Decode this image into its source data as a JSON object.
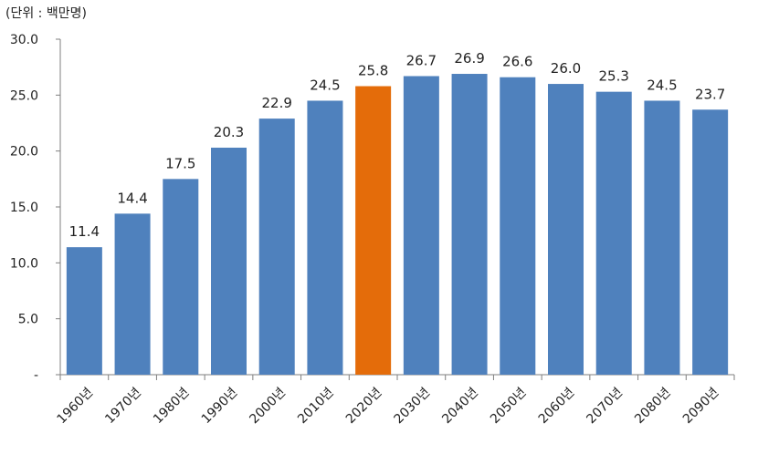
{
  "unit_label": "(단위 : 백만명)",
  "chart_data": {
    "type": "bar",
    "categories": [
      "1960년",
      "1970년",
      "1980년",
      "1990년",
      "2000년",
      "2010년",
      "2020년",
      "2030년",
      "2040년",
      "2050년",
      "2060년",
      "2070년",
      "2080년",
      "2090년"
    ],
    "values": [
      11.4,
      14.4,
      17.5,
      20.3,
      22.9,
      24.5,
      25.8,
      26.7,
      26.9,
      26.6,
      26.0,
      25.3,
      24.5,
      23.7
    ],
    "data_labels": [
      "11.4",
      "14.4",
      "17.5",
      "20.3",
      "22.9",
      "24.5",
      "25.8",
      "26.7",
      "26.9",
      "26.6",
      "26.0",
      "25.3",
      "24.5",
      "23.7"
    ],
    "y_ticks": [
      0,
      5,
      10,
      15,
      20,
      25,
      30
    ],
    "y_tick_labels": [
      "-",
      "5.0",
      "10.0",
      "15.0",
      "20.0",
      "25.0",
      "30.0"
    ],
    "ylim": [
      0,
      30
    ],
    "grid": false,
    "legend": "none",
    "bar_color": "#4f81bd",
    "highlight_color": "#e46c0a",
    "highlight_category": "2020년"
  }
}
